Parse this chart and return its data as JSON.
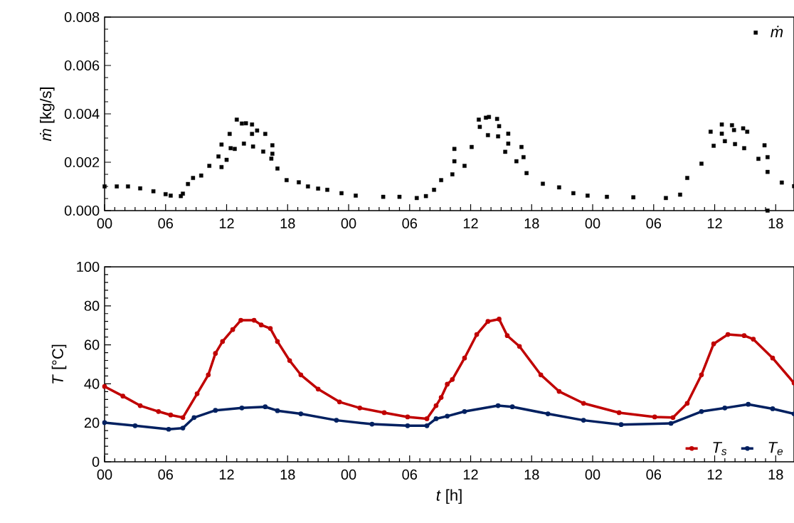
{
  "chart_data": [
    {
      "type": "scatter",
      "ylabel": "*ṁ* [kg/s]",
      "xlim": [
        0,
        67.8
      ],
      "ylim": [
        0,
        0.008
      ],
      "xticks": [
        {
          "value": 0,
          "label": "00"
        },
        {
          "value": 6,
          "label": "06"
        },
        {
          "value": 12,
          "label": "12"
        },
        {
          "value": 18,
          "label": "18"
        },
        {
          "value": 24,
          "label": "00"
        },
        {
          "value": 30,
          "label": "06"
        },
        {
          "value": 36,
          "label": "12"
        },
        {
          "value": 42,
          "label": "18"
        },
        {
          "value": 48,
          "label": "00"
        },
        {
          "value": 54,
          "label": "06"
        },
        {
          "value": 60,
          "label": "12"
        },
        {
          "value": 66,
          "label": "18"
        }
      ],
      "yticks": [
        {
          "value": 0,
          "label": "0.000"
        },
        {
          "value": 0.002,
          "label": "0.002"
        },
        {
          "value": 0.004,
          "label": "0.004"
        },
        {
          "value": 0.006,
          "label": "0.006"
        },
        {
          "value": 0.008,
          "label": "0.008"
        }
      ],
      "marker": "square",
      "legend": "top right",
      "series": [
        {
          "name": "ṁ",
          "color": "#000000",
          "x": [
            0,
            1.2,
            2.3,
            3.5,
            4.8,
            6.0,
            6.5,
            7.5,
            7.7,
            8.2,
            8.7,
            9.5,
            10.3,
            11.2,
            11.5,
            12.0,
            12.8,
            13.7,
            14.6,
            15.6,
            16.4,
            17.0,
            17.9,
            19.1,
            20.0,
            21.0,
            21.9,
            23.3,
            24.7,
            27.4,
            29.0,
            30.7,
            31.6,
            32.4,
            33.1,
            34.2,
            35.4,
            36.1,
            37.7,
            38.7,
            39.4,
            40.5,
            41.5,
            43.1,
            44.7,
            46.1,
            47.5,
            49.4,
            52.0,
            55.2,
            56.6,
            57.3,
            58.7,
            59.9,
            61.0,
            62.0,
            62.9,
            64.3,
            65.2,
            66.6,
            67.8,
            11.5,
            12.3,
            12.4,
            13.0,
            13.5,
            13.9,
            14.5,
            14.5,
            15.0,
            15.8,
            16.5,
            16.5,
            34.4,
            34.4,
            36.8,
            36.9,
            37.5,
            37.8,
            38.6,
            38.8,
            39.7,
            39.7,
            41.0,
            41.2,
            59.6,
            60.7,
            60.7,
            61.7,
            61.9,
            62.8,
            63.2,
            64.9,
            65.2,
            65.2
          ],
          "values": [
            0.001,
            0.001,
            0.001,
            0.00092,
            0.0008,
            0.00068,
            0.00062,
            0.0006,
            0.0007,
            0.0011,
            0.00135,
            0.00145,
            0.00185,
            0.00224,
            0.0018,
            0.0021,
            0.00255,
            0.00277,
            0.00265,
            0.00244,
            0.00215,
            0.00174,
            0.00126,
            0.00117,
            0.001,
            0.00091,
            0.00086,
            0.00072,
            0.00062,
            0.00057,
            0.00057,
            0.00052,
            0.0006,
            0.00086,
            0.00126,
            0.0015,
            0.00185,
            0.00263,
            0.00312,
            0.00307,
            0.00243,
            0.00204,
            0.00155,
            0.00111,
            0.00096,
            0.00072,
            0.00062,
            0.00057,
            0.00055,
            0.00052,
            0.00066,
            0.00135,
            0.00194,
            0.00268,
            0.00287,
            0.00275,
            0.00258,
            0.00214,
            0.0016,
            0.00116,
            0.00101,
            0.00273,
            0.00317,
            0.00258,
            0.00376,
            0.0036,
            0.00361,
            0.00356,
            0.00317,
            0.00331,
            0.00317,
            0.0027,
            0.00235,
            0.00255,
            0.00204,
            0.00376,
            0.00346,
            0.00384,
            0.00387,
            0.00379,
            0.00349,
            0.00318,
            0.00277,
            0.00263,
            0.00221,
            0.00326,
            0.00356,
            0.00318,
            0.00353,
            0.00333,
            0.0034,
            0.00326,
            0.0027,
            0.00221,
            0.0
          ]
        }
      ]
    },
    {
      "type": "line",
      "xlabel": "*t* [h]",
      "ylabel": "*T* [°C]",
      "xlim": [
        0,
        67.8
      ],
      "ylim": [
        0,
        100
      ],
      "xticks": [
        {
          "value": 0,
          "label": "00"
        },
        {
          "value": 6,
          "label": "06"
        },
        {
          "value": 12,
          "label": "12"
        },
        {
          "value": 18,
          "label": "18"
        },
        {
          "value": 24,
          "label": "00"
        },
        {
          "value": 30,
          "label": "06"
        },
        {
          "value": 36,
          "label": "12"
        },
        {
          "value": 42,
          "label": "18"
        },
        {
          "value": 48,
          "label": "00"
        },
        {
          "value": 54,
          "label": "06"
        },
        {
          "value": 60,
          "label": "12"
        },
        {
          "value": 66,
          "label": "18"
        }
      ],
      "yticks": [
        0,
        20,
        40,
        60,
        80,
        100
      ],
      "marker": "circle",
      "line_style": "solid",
      "legend": "bottom right",
      "series": [
        {
          "name": "T$_{s}$",
          "color": "#c00000",
          "x": [
            0,
            1.8,
            3.5,
            5.3,
            6.5,
            7.7,
            9.1,
            10.2,
            10.9,
            11.6,
            12.6,
            13.4,
            14.7,
            15.4,
            16.3,
            17.0,
            18.2,
            19.3,
            21.0,
            23.1,
            25.1,
            27.5,
            29.8,
            31.7,
            32.6,
            33.1,
            33.7,
            34.2,
            35.4,
            36.6,
            37.7,
            38.8,
            39.6,
            40.8,
            42.9,
            44.7,
            47.1,
            50.6,
            54.1,
            55.9,
            57.3,
            58.7,
            59.9,
            61.3,
            62.9,
            63.8,
            65.7,
            67.8
          ],
          "values": [
            38.6,
            33.7,
            28.8,
            25.8,
            24.0,
            22.7,
            34.9,
            44.6,
            55.6,
            61.7,
            67.8,
            72.6,
            72.6,
            70.2,
            68.4,
            61.7,
            51.9,
            44.6,
            37.3,
            30.7,
            27.6,
            25.2,
            23.0,
            22.1,
            28.8,
            33.0,
            39.8,
            42.2,
            53.2,
            65.3,
            72.0,
            73.2,
            64.7,
            59.2,
            44.6,
            36.1,
            30.0,
            25.2,
            23.0,
            22.7,
            30.0,
            44.6,
            60.5,
            65.3,
            64.7,
            62.9,
            53.2,
            40.4
          ]
        },
        {
          "name": "T$_{e}$",
          "color": "#002060",
          "x": [
            0,
            3.0,
            6.3,
            7.7,
            8.8,
            10.9,
            13.5,
            15.8,
            17.0,
            19.3,
            22.8,
            26.3,
            29.8,
            31.7,
            32.6,
            33.7,
            35.4,
            38.7,
            40.1,
            43.6,
            47.1,
            50.8,
            55.7,
            58.7,
            61.0,
            63.3,
            65.7,
            67.8
          ],
          "values": [
            20.1,
            18.5,
            16.7,
            17.3,
            22.7,
            26.4,
            27.6,
            28.2,
            26.2,
            24.6,
            21.3,
            19.3,
            18.5,
            18.5,
            22.1,
            23.4,
            25.8,
            28.8,
            28.2,
            24.6,
            21.3,
            19.1,
            19.7,
            25.8,
            27.6,
            29.5,
            27.2,
            24.6
          ]
        }
      ]
    }
  ]
}
